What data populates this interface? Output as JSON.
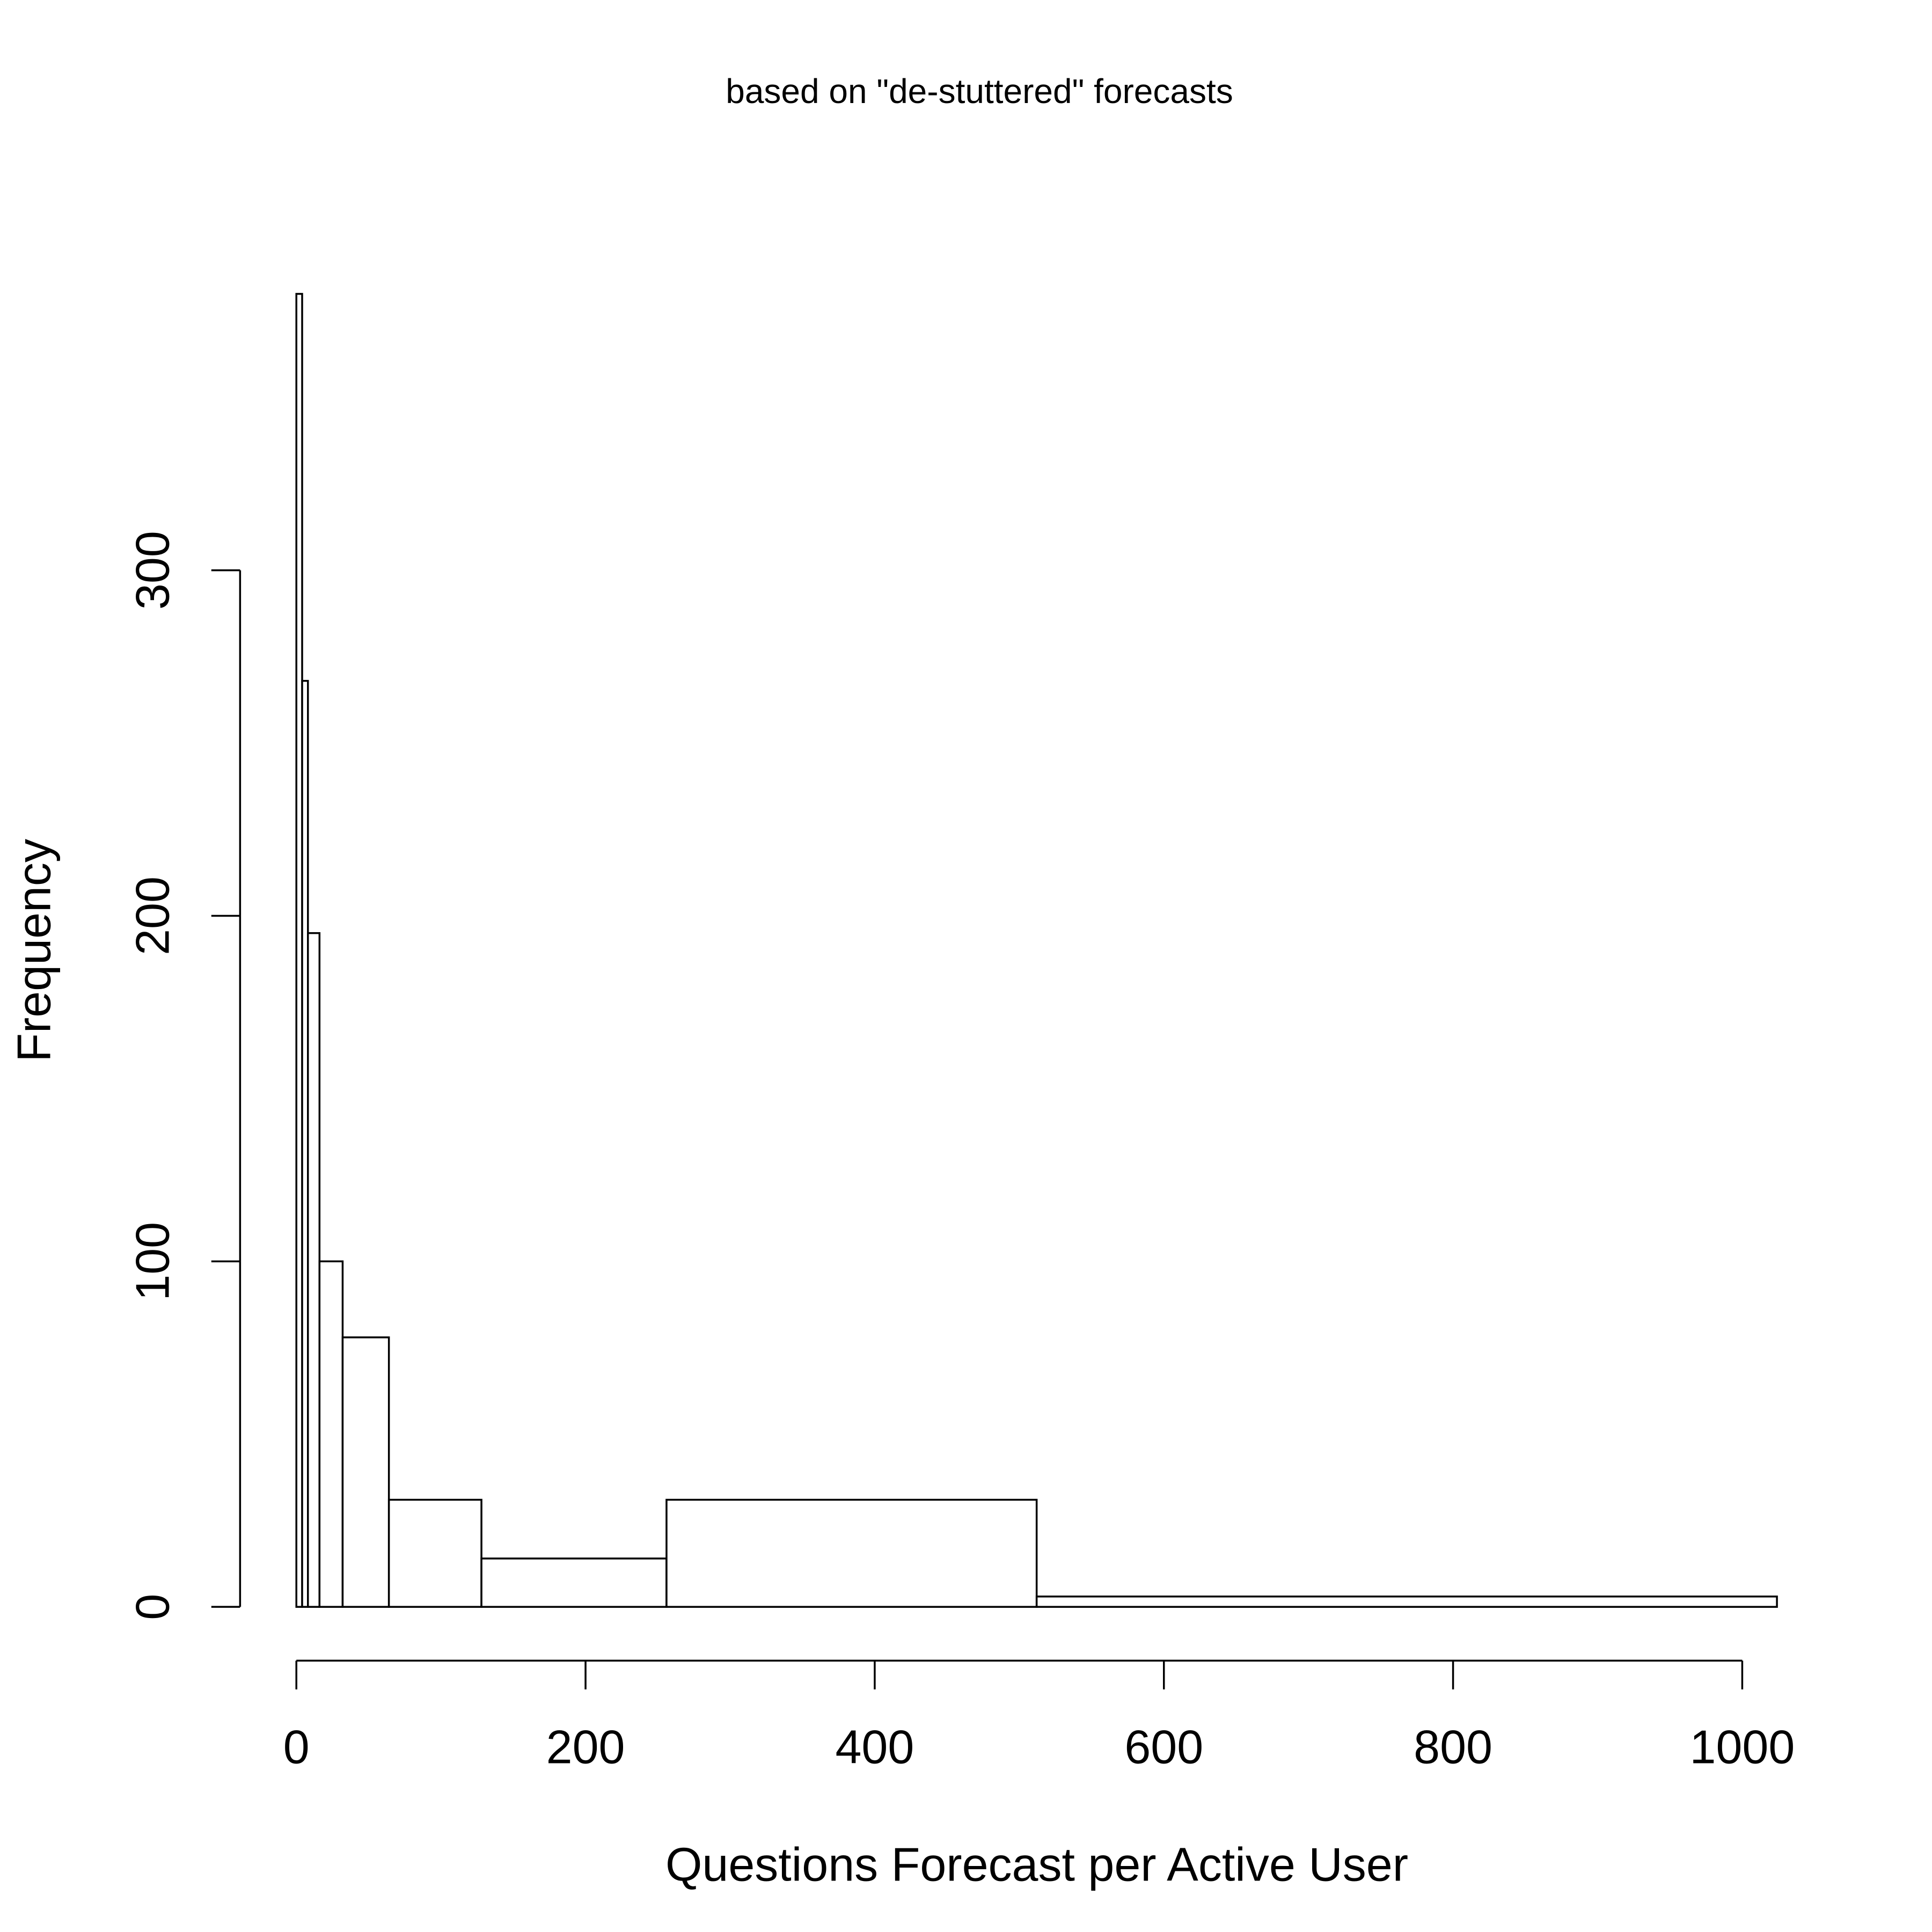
{
  "chart_data": {
    "type": "histogram",
    "title": "based on \"de-stuttered\" forecasts",
    "x_label": "Questions Forecast per Active User",
    "y_label": "Frequency",
    "bins": [
      0,
      4,
      8,
      16,
      32,
      64,
      128,
      256,
      512,
      1024
    ],
    "values": [
      380,
      268,
      195,
      100,
      78,
      31,
      14,
      31,
      3
    ],
    "color": "#ffffff",
    "xlim": [
      0,
      1024
    ],
    "ylim": [
      0,
      380
    ],
    "xticks": [
      0,
      200,
      400,
      600,
      800,
      1000
    ],
    "yticks": [
      0,
      100,
      200,
      300
    ],
    "grid": false
  }
}
